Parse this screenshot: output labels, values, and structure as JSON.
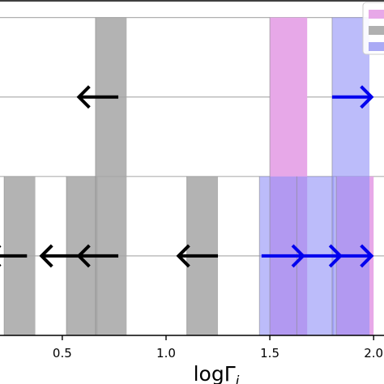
{
  "chart_data": {
    "type": "bar",
    "xlabel": "logΓ",
    "xlabel_subscript": "i",
    "xlim": [
      0.2,
      2.05
    ],
    "ylim": [
      0,
      4.2
    ],
    "xticks": [
      {
        "value": 0.5,
        "label": "0.5"
      },
      {
        "value": 1.0,
        "label": "1.0"
      },
      {
        "value": 1.5,
        "label": "1.5"
      },
      {
        "value": 2.0,
        "label": "2.0"
      }
    ],
    "yticks": [
      1,
      2,
      3,
      4
    ],
    "grid": "horizontal",
    "legend_position": "top-right",
    "series": [
      {
        "color": "#e7a8e8",
        "alpha": 1.0,
        "bars": [
          {
            "x0": 1.5,
            "x1": 1.68,
            "height": 4
          },
          {
            "x0": 1.82,
            "x1": 2.0,
            "height": 2
          }
        ]
      },
      {
        "color": "#a6a6a6",
        "alpha": 0.85,
        "bars": [
          {
            "x0": 0.22,
            "x1": 0.37,
            "height": 2
          },
          {
            "x0": 0.52,
            "x1": 0.67,
            "height": 2
          },
          {
            "x0": 0.66,
            "x1": 0.81,
            "height": 4
          },
          {
            "x0": 1.1,
            "x1": 1.25,
            "height": 2
          }
        ]
      },
      {
        "color": "#8f8ff7",
        "alpha": 0.6,
        "bars": [
          {
            "x0": 1.45,
            "x1": 1.63,
            "height": 2
          },
          {
            "x0": 1.63,
            "x1": 1.81,
            "height": 2
          },
          {
            "x0": 1.8,
            "x1": 1.98,
            "height": 4
          }
        ]
      }
    ],
    "arrows": [
      {
        "x_from": 0.77,
        "x_to": 0.58,
        "y": 3.0,
        "color": "#000000"
      },
      {
        "x_from": 0.33,
        "x_to": 0.15,
        "y": 1.0,
        "color": "#000000"
      },
      {
        "x_from": 0.59,
        "x_to": 0.4,
        "y": 1.0,
        "color": "#000000"
      },
      {
        "x_from": 0.77,
        "x_to": 0.58,
        "y": 1.0,
        "color": "#000000"
      },
      {
        "x_from": 1.25,
        "x_to": 1.06,
        "y": 1.0,
        "color": "#000000"
      },
      {
        "x_from": 1.8,
        "x_to": 1.99,
        "y": 3.0,
        "color": "#0000ee"
      },
      {
        "x_from": 1.46,
        "x_to": 1.66,
        "y": 1.0,
        "color": "#0000ee"
      },
      {
        "x_from": 1.64,
        "x_to": 1.84,
        "y": 1.0,
        "color": "#0000ee"
      },
      {
        "x_from": 1.81,
        "x_to": 1.99,
        "y": 1.0,
        "color": "#0000ee"
      }
    ],
    "legend_swatches": [
      {
        "color": "#e7a8e8"
      },
      {
        "color": "#b0b0b0"
      },
      {
        "color": "#aaaaf5"
      }
    ]
  }
}
